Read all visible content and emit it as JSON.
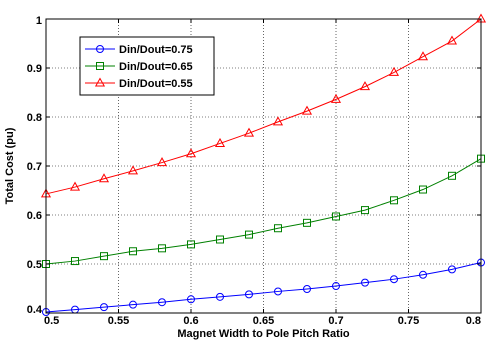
{
  "chart_data": {
    "type": "line",
    "xlabel": "Magnet Width to Pole Pitch Ratio",
    "ylabel": "Total Cost (pu)",
    "xlim": [
      0.5,
      0.8
    ],
    "ylim": [
      0.4,
      1.0
    ],
    "xticks": [
      0.5,
      0.55,
      0.6,
      0.65,
      0.7,
      0.75,
      0.8
    ],
    "xtick_labels": [
      "0.5",
      "0.55",
      "0.6",
      "0.65",
      "0.7",
      "0.75",
      "0.8"
    ],
    "yticks": [
      0.4,
      0.5,
      0.6,
      0.7,
      0.8,
      0.9,
      1.0
    ],
    "ytick_labels": [
      "0.4",
      "0.5",
      "0.6",
      "0.7",
      "0.8",
      "0.9",
      "1"
    ],
    "grid": true,
    "legend_position": "top-left",
    "x": [
      0.5,
      0.52,
      0.54,
      0.56,
      0.58,
      0.6,
      0.62,
      0.64,
      0.66,
      0.68,
      0.7,
      0.72,
      0.74,
      0.76,
      0.78,
      0.8
    ],
    "series": [
      {
        "name": "Din/Dout=0.75",
        "color": "#0000ff",
        "marker": "circle",
        "values": [
          0.402,
          0.407,
          0.412,
          0.417,
          0.422,
          0.428,
          0.433,
          0.438,
          0.444,
          0.449,
          0.455,
          0.462,
          0.469,
          0.478,
          0.489,
          0.503
        ]
      },
      {
        "name": "Din/Dout=0.65",
        "color": "#008000",
        "marker": "square",
        "values": [
          0.5,
          0.506,
          0.516,
          0.526,
          0.532,
          0.54,
          0.55,
          0.56,
          0.573,
          0.584,
          0.597,
          0.61,
          0.63,
          0.652,
          0.68,
          0.715
        ]
      },
      {
        "name": "Din/Dout=0.55",
        "color": "#ff0000",
        "marker": "triangle",
        "values": [
          0.643,
          0.657,
          0.674,
          0.69,
          0.707,
          0.725,
          0.746,
          0.767,
          0.79,
          0.812,
          0.836,
          0.862,
          0.891,
          0.923,
          0.955,
          1.0
        ]
      }
    ]
  }
}
